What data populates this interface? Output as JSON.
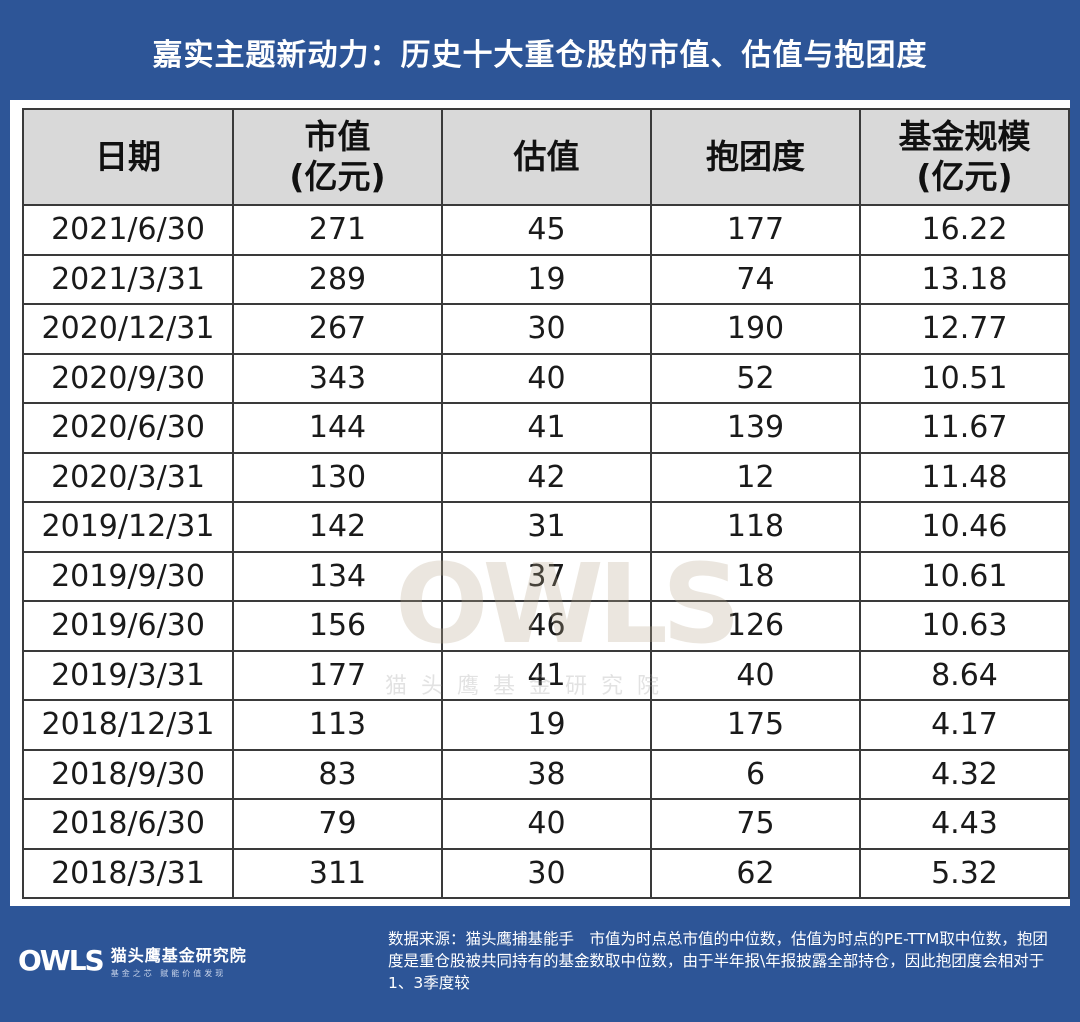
{
  "title": "嘉实主题新动力：历史十大重仓股的市值、估值与抱团度",
  "chart_data": {
    "type": "table",
    "columns": [
      {
        "line1": "日期",
        "line2": ""
      },
      {
        "line1": "市值",
        "line2": "(亿元)"
      },
      {
        "line1": "估值",
        "line2": ""
      },
      {
        "line1": "抱团度",
        "line2": ""
      },
      {
        "line1": "基金规模",
        "line2": "(亿元)"
      }
    ],
    "rows": [
      [
        "2021/6/30",
        "271",
        "45",
        "177",
        "16.22"
      ],
      [
        "2021/3/31",
        "289",
        "19",
        "74",
        "13.18"
      ],
      [
        "2020/12/31",
        "267",
        "30",
        "190",
        "12.77"
      ],
      [
        "2020/9/30",
        "343",
        "40",
        "52",
        "10.51"
      ],
      [
        "2020/6/30",
        "144",
        "41",
        "139",
        "11.67"
      ],
      [
        "2020/3/31",
        "130",
        "42",
        "12",
        "11.48"
      ],
      [
        "2019/12/31",
        "142",
        "31",
        "118",
        "10.46"
      ],
      [
        "2019/9/30",
        "134",
        "37",
        "18",
        "10.61"
      ],
      [
        "2019/6/30",
        "156",
        "46",
        "126",
        "10.63"
      ],
      [
        "2019/3/31",
        "177",
        "41",
        "40",
        "8.64"
      ],
      [
        "2018/12/31",
        "113",
        "19",
        "175",
        "4.17"
      ],
      [
        "2018/9/30",
        "83",
        "38",
        "6",
        "4.32"
      ],
      [
        "2018/6/30",
        "79",
        "40",
        "75",
        "4.43"
      ],
      [
        "2018/3/31",
        "311",
        "30",
        "62",
        "5.32"
      ]
    ]
  },
  "watermark": {
    "word": "OWLS",
    "sub": "猫头鹰基金研究院"
  },
  "footer": {
    "logo_mark": "OWLS",
    "logo_name": "猫头鹰基金研究院",
    "logo_slogan": "基金之芯 赋能价值发现",
    "source": "数据来源：猫头鹰捕基能手　市值为时点总市值的中位数，估值为时点的PE-TTM取中位数，抱团度是重仓股被共同持有的基金数取中位数，由于半年报\\年报披露全部持仓，因此抱团度会相对于1、3季度较"
  }
}
